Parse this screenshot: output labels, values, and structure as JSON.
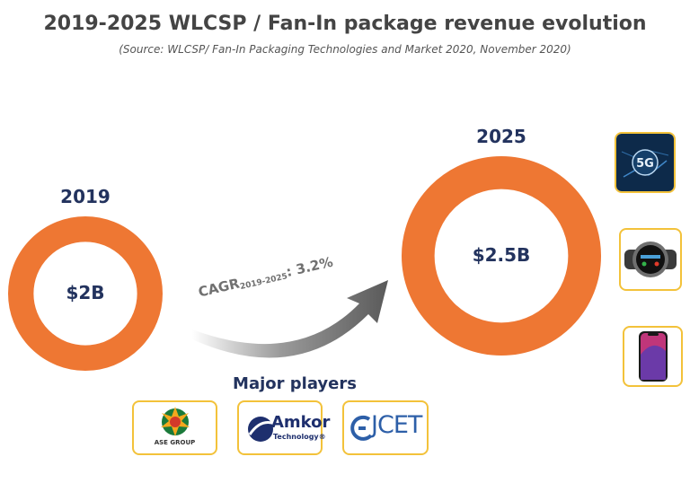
{
  "title": "2019-2025 WLCSP / Fan-In package revenue evolution",
  "source": "(Source: WLCSP/ Fan-In Packaging Technologies and Market 2020, November 2020)",
  "chart_data": {
    "type": "bubble-comparison",
    "categories": [
      "2019",
      "2025"
    ],
    "labels": [
      "$2B",
      "$2.5B"
    ],
    "values": [
      2.0,
      2.5
    ],
    "unit": "$B",
    "ring_color": "#ee7733",
    "cagr": {
      "prefix": "CAGR",
      "subscript": "2019-2025",
      "suffix": ": 3.2%",
      "value_percent": 3.2
    }
  },
  "players": {
    "heading": "Major players",
    "logos": [
      {
        "name": "ASE GROUP",
        "icon": "ase-group-logo"
      },
      {
        "name": "Amkor",
        "sub": "Technology®",
        "icon": "amkor-logo"
      },
      {
        "name": "JCET",
        "icon": "jcet-logo"
      }
    ]
  },
  "applications": [
    {
      "name": "5G",
      "icon": "5g-network-image"
    },
    {
      "name": "smartwatch",
      "icon": "smartwatch-image"
    },
    {
      "name": "smartphone",
      "icon": "smartphone-image"
    }
  ]
}
